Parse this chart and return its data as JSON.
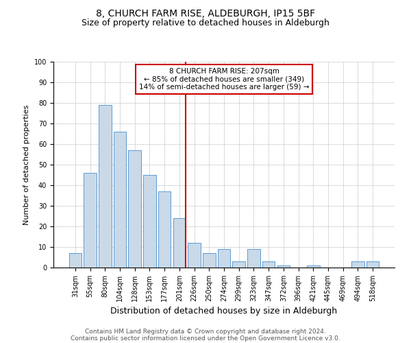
{
  "title1": "8, CHURCH FARM RISE, ALDEBURGH, IP15 5BF",
  "title2": "Size of property relative to detached houses in Aldeburgh",
  "xlabel": "Distribution of detached houses by size in Aldeburgh",
  "ylabel": "Number of detached properties",
  "categories": [
    "31sqm",
    "55sqm",
    "80sqm",
    "104sqm",
    "128sqm",
    "153sqm",
    "177sqm",
    "201sqm",
    "226sqm",
    "250sqm",
    "274sqm",
    "299sqm",
    "323sqm",
    "347sqm",
    "372sqm",
    "396sqm",
    "421sqm",
    "445sqm",
    "469sqm",
    "494sqm",
    "518sqm"
  ],
  "values": [
    7,
    46,
    79,
    66,
    57,
    45,
    37,
    24,
    12,
    7,
    9,
    3,
    9,
    3,
    1,
    0,
    1,
    0,
    0,
    3,
    3
  ],
  "bar_color": "#c9d9e8",
  "bar_edge_color": "#5b9bd5",
  "vline_color": "#cc0000",
  "vline_x": 7.42,
  "annotation_text": "8 CHURCH FARM RISE: 207sqm\n← 85% of detached houses are smaller (349)\n14% of semi-detached houses are larger (59) →",
  "annotation_box_color": "#ffffff",
  "annotation_box_edge_color": "#cc0000",
  "ylim": [
    0,
    100
  ],
  "yticks": [
    0,
    10,
    20,
    30,
    40,
    50,
    60,
    70,
    80,
    90,
    100
  ],
  "footer_line1": "Contains HM Land Registry data © Crown copyright and database right 2024.",
  "footer_line2": "Contains public sector information licensed under the Open Government Licence v3.0.",
  "title1_fontsize": 10,
  "title2_fontsize": 9,
  "xlabel_fontsize": 9,
  "ylabel_fontsize": 8,
  "tick_fontsize": 7,
  "annotation_fontsize": 7.5,
  "footer_fontsize": 6.5
}
